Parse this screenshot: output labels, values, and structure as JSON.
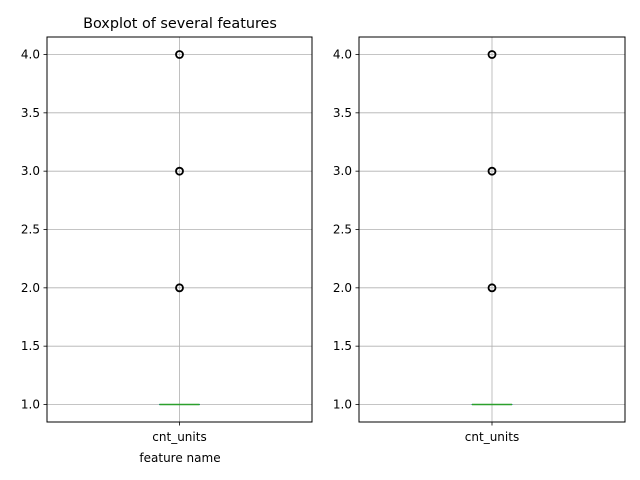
{
  "chart_data": [
    {
      "type": "box",
      "title": "Boxplot of several features",
      "xlabel": "feature name",
      "ylabel": "",
      "categories": [
        "cnt_units"
      ],
      "yticks": [
        "1.0",
        "1.5",
        "2.0",
        "2.5",
        "3.0",
        "3.5",
        "4.0"
      ],
      "ylim": [
        0.85,
        4.15
      ],
      "grid": true,
      "boxes": [
        {
          "category": "cnt_units",
          "q1": 1.0,
          "median": 1.0,
          "q3": 1.0,
          "whisker_low": 1.0,
          "whisker_high": 1.0,
          "outliers": [
            2.0,
            3.0,
            4.0
          ]
        }
      ]
    },
    {
      "type": "box",
      "title": "",
      "xlabel": "",
      "ylabel": "",
      "categories": [
        "cnt_units"
      ],
      "yticks": [
        "1.0",
        "1.5",
        "2.0",
        "2.5",
        "3.0",
        "3.5",
        "4.0"
      ],
      "ylim": [
        0.85,
        4.15
      ],
      "grid": true,
      "boxes": [
        {
          "category": "cnt_units",
          "q1": 1.0,
          "median": 1.0,
          "q3": 1.0,
          "whisker_low": 1.0,
          "whisker_high": 1.0,
          "outliers": [
            2.0,
            3.0,
            4.0
          ]
        }
      ]
    }
  ],
  "colors": {
    "grid": "#b0b0b0",
    "box": "#1f77b4",
    "median": "#2ca02c",
    "outlier_edge": "#000000"
  }
}
